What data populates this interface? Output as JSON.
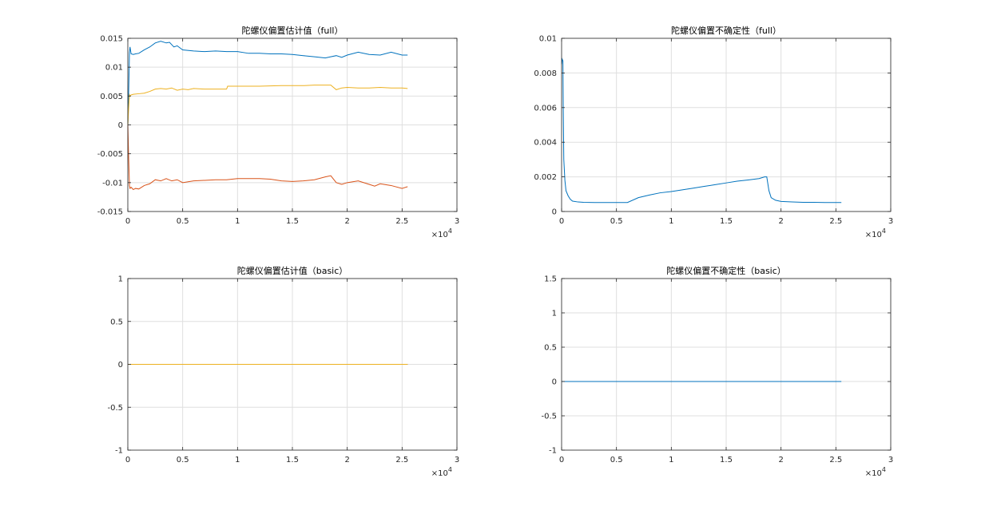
{
  "chart_data": [
    {
      "type": "line",
      "title": "陀螺仪偏置估计值（full）",
      "xlabel": "",
      "ylabel": "",
      "xlim": [
        0,
        30000
      ],
      "ylim": [
        -0.015,
        0.015
      ],
      "xticks": [
        0,
        5000,
        10000,
        15000,
        20000,
        25000,
        30000
      ],
      "xtick_labels": [
        "0",
        "0.5",
        "1",
        "1.5",
        "2",
        "2.5",
        "3"
      ],
      "yticks": [
        -0.015,
        -0.01,
        -0.005,
        0,
        0.005,
        0.01,
        0.015
      ],
      "ytick_labels": [
        "-0.015",
        "-0.01",
        "-0.005",
        "0",
        "0.005",
        "0.01",
        "0.015"
      ],
      "x_exponent": "4",
      "grid": true,
      "series": [
        {
          "color": "#0072BD",
          "x": [
            0,
            80,
            150,
            200,
            300,
            500,
            700,
            1000,
            1500,
            2000,
            2500,
            3000,
            3500,
            3800,
            4200,
            4500,
            5000,
            6000,
            7000,
            8000,
            9000,
            10000,
            11000,
            12000,
            13000,
            14000,
            15000,
            16000,
            17000,
            18000,
            18500,
            19000,
            19500,
            20000,
            21000,
            22000,
            23000,
            24000,
            25000,
            25500
          ],
          "y": [
            0,
            0.006,
            0.0125,
            0.0135,
            0.0123,
            0.0122,
            0.0123,
            0.0124,
            0.013,
            0.0135,
            0.0142,
            0.0145,
            0.0142,
            0.0143,
            0.0135,
            0.0137,
            0.013,
            0.0128,
            0.0127,
            0.0128,
            0.0127,
            0.0127,
            0.0124,
            0.0124,
            0.0123,
            0.0123,
            0.0122,
            0.012,
            0.0118,
            0.0116,
            0.0118,
            0.012,
            0.0117,
            0.0121,
            0.0126,
            0.0122,
            0.0121,
            0.0126,
            0.0121,
            0.0121
          ]
        },
        {
          "color": "#D95319",
          "x": [
            0,
            80,
            150,
            200,
            300,
            500,
            700,
            1000,
            1500,
            2000,
            2500,
            3000,
            3500,
            4000,
            4500,
            5000,
            6000,
            7000,
            8000,
            9000,
            10000,
            11000,
            12000,
            13000,
            14000,
            15000,
            16000,
            17000,
            18000,
            18500,
            19000,
            19500,
            20000,
            21000,
            22000,
            22500,
            23000,
            24000,
            25000,
            25500
          ],
          "y": [
            0,
            -0.006,
            -0.0105,
            -0.011,
            -0.0108,
            -0.0112,
            -0.011,
            -0.0111,
            -0.0105,
            -0.0102,
            -0.0095,
            -0.0097,
            -0.0093,
            -0.0097,
            -0.0095,
            -0.01,
            -0.0097,
            -0.0096,
            -0.0095,
            -0.0095,
            -0.0093,
            -0.0093,
            -0.0093,
            -0.0094,
            -0.0097,
            -0.0098,
            -0.0097,
            -0.0095,
            -0.009,
            -0.0088,
            -0.01,
            -0.0103,
            -0.01,
            -0.0097,
            -0.0103,
            -0.0106,
            -0.0102,
            -0.0105,
            -0.011,
            -0.0107
          ]
        },
        {
          "color": "#EDB120",
          "x": [
            0,
            80,
            150,
            200,
            300,
            500,
            1000,
            1500,
            2000,
            2500,
            3000,
            3500,
            4000,
            4500,
            5000,
            5500,
            6000,
            7000,
            8000,
            9000,
            9100,
            10000,
            12000,
            14000,
            15000,
            16000,
            17000,
            18000,
            18500,
            19000,
            19500,
            20000,
            21000,
            22000,
            23000,
            24000,
            25000,
            25500
          ],
          "y": [
            0,
            0.003,
            0.0052,
            0.005,
            0.0052,
            0.0053,
            0.0054,
            0.0055,
            0.0058,
            0.0062,
            0.0063,
            0.0062,
            0.0064,
            0.006,
            0.0062,
            0.0061,
            0.0063,
            0.0062,
            0.0062,
            0.0062,
            0.0067,
            0.0067,
            0.0067,
            0.0068,
            0.0068,
            0.0068,
            0.0069,
            0.0069,
            0.0069,
            0.0061,
            0.0064,
            0.0065,
            0.0064,
            0.0064,
            0.0065,
            0.0064,
            0.0064,
            0.0063
          ]
        }
      ]
    },
    {
      "type": "line",
      "title": "陀螺仪偏置不确定性（full）",
      "xlabel": "",
      "ylabel": "",
      "xlim": [
        0,
        30000
      ],
      "ylim": [
        0,
        0.01
      ],
      "xticks": [
        0,
        5000,
        10000,
        15000,
        20000,
        25000,
        30000
      ],
      "xtick_labels": [
        "0",
        "0.5",
        "1",
        "1.5",
        "2",
        "2.5",
        "3"
      ],
      "yticks": [
        0,
        0.002,
        0.004,
        0.006,
        0.008,
        0.01
      ],
      "ytick_labels": [
        "0",
        "0.002",
        "0.004",
        "0.006",
        "0.008",
        "0.01"
      ],
      "x_exponent": "4",
      "grid": true,
      "series": [
        {
          "color": "#0072BD",
          "x": [
            0,
            50,
            120,
            150,
            200,
            300,
            400,
            600,
            800,
            1000,
            1500,
            2000,
            3000,
            4000,
            5000,
            6000,
            7000,
            8000,
            9000,
            10000,
            11000,
            12000,
            13000,
            14000,
            15000,
            16000,
            17000,
            18000,
            18500,
            18700,
            18900,
            19100,
            19500,
            20000,
            21000,
            22000,
            23000,
            24000,
            25000,
            25500
          ],
          "y": [
            0.0085,
            0.0088,
            0.0087,
            0.006,
            0.003,
            0.0018,
            0.0012,
            0.0009,
            0.0007,
            0.0006,
            0.00055,
            0.00053,
            0.00052,
            0.00052,
            0.00052,
            0.00052,
            0.0008,
            0.00095,
            0.00108,
            0.00115,
            0.00125,
            0.00135,
            0.00145,
            0.00155,
            0.00165,
            0.00175,
            0.00182,
            0.0019,
            0.002,
            0.002,
            0.0012,
            0.0008,
            0.00065,
            0.00058,
            0.00055,
            0.00053,
            0.00053,
            0.00052,
            0.00052,
            0.00052
          ]
        }
      ]
    },
    {
      "type": "line",
      "title": "陀螺仪偏置估计值（basic）",
      "xlabel": "",
      "ylabel": "",
      "xlim": [
        0,
        30000
      ],
      "ylim": [
        -1,
        1
      ],
      "xticks": [
        0,
        5000,
        10000,
        15000,
        20000,
        25000,
        30000
      ],
      "xtick_labels": [
        "0",
        "0.5",
        "1",
        "1.5",
        "2",
        "2.5",
        "3"
      ],
      "yticks": [
        -1,
        -0.5,
        0,
        0.5,
        1
      ],
      "ytick_labels": [
        "-1",
        "-0.5",
        "0",
        "0.5",
        "1"
      ],
      "x_exponent": "4",
      "grid": true,
      "series": [
        {
          "color": "#0072BD",
          "x": [
            0,
            25500
          ],
          "y": [
            0,
            0
          ]
        },
        {
          "color": "#D95319",
          "x": [
            0,
            25500
          ],
          "y": [
            0,
            0
          ]
        },
        {
          "color": "#EDB120",
          "x": [
            0,
            25500
          ],
          "y": [
            0,
            0
          ]
        }
      ]
    },
    {
      "type": "line",
      "title": "陀螺仪偏置不确定性（basic）",
      "xlabel": "",
      "ylabel": "",
      "xlim": [
        0,
        30000
      ],
      "ylim": [
        -1,
        1.5
      ],
      "xticks": [
        0,
        5000,
        10000,
        15000,
        20000,
        25000,
        30000
      ],
      "xtick_labels": [
        "0",
        "0.5",
        "1",
        "1.5",
        "2",
        "2.5",
        "3"
      ],
      "yticks": [
        -1,
        -0.5,
        0,
        0.5,
        1,
        1.5
      ],
      "ytick_labels": [
        "-1",
        "-0.5",
        "0",
        "0.5",
        "1",
        "1.5"
      ],
      "x_exponent": "4",
      "grid": true,
      "series": [
        {
          "color": "#0072BD",
          "x": [
            0,
            25500
          ],
          "y": [
            0,
            0
          ]
        }
      ]
    }
  ]
}
